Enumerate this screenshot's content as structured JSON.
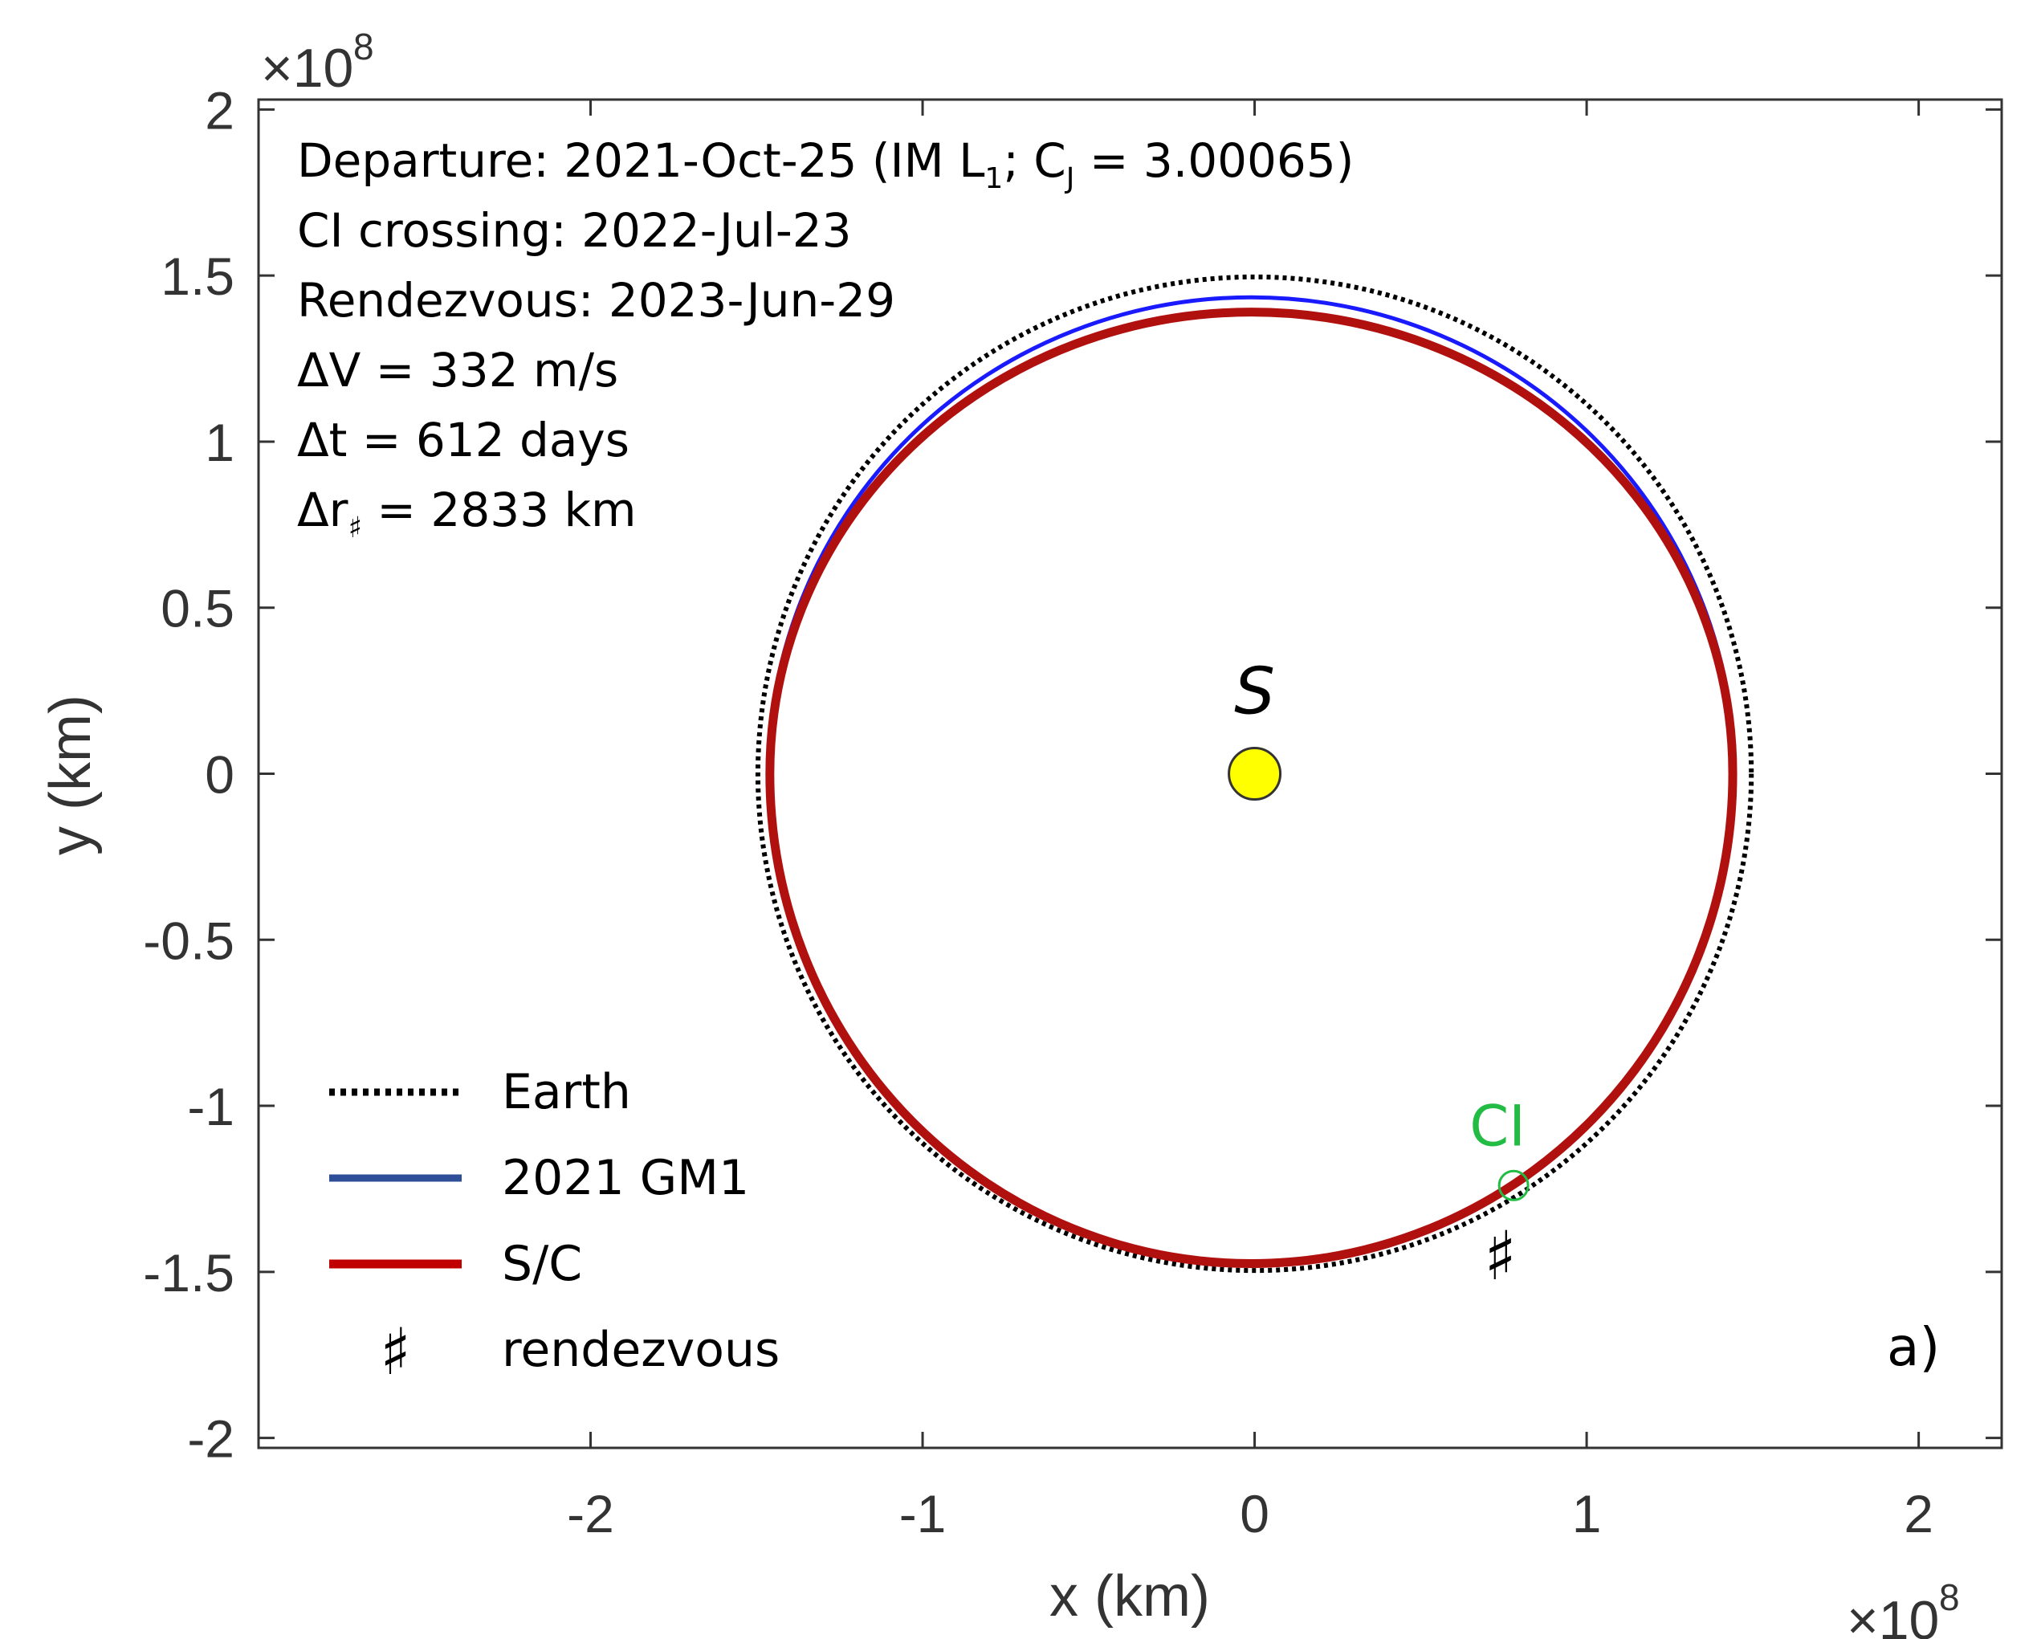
{
  "chart_data": {
    "type": "line",
    "title": "",
    "xlabel": "x (km)",
    "ylabel": "y (km)",
    "x_exponent_label": "×10",
    "x_exponent_power": "8",
    "y_exponent_label": "×10",
    "y_exponent_power": "8",
    "xlim": [
      -3.0,
      2.25
    ],
    "ylim": [
      -2.03,
      2.03
    ],
    "x_ticks": [
      -2,
      -1,
      0,
      1,
      2
    ],
    "x_tick_labels": [
      "-2",
      "-1",
      "0",
      "1",
      "2"
    ],
    "y_ticks": [
      -2,
      -1.5,
      -1,
      -0.5,
      0,
      0.5,
      1,
      1.5,
      2
    ],
    "y_tick_labels": [
      "-2",
      "-1.5",
      "-1",
      "-0.5",
      "0",
      "0.5",
      "1",
      "1.5",
      "2"
    ],
    "units_note": "x and y values in units of 10^8 km",
    "grid": false,
    "legend_position": "bottom-left",
    "colors": {
      "earth": "#000000",
      "gm1": "#1a1aff",
      "sc": "#b0110f",
      "sun": "#ffff00",
      "ci": "#22bb44",
      "legend_gm1": "#2e4f97",
      "legend_sc": "#c00000"
    },
    "series": [
      {
        "name": "Earth",
        "style": "dotted",
        "center": [
          0.0,
          0.0
        ],
        "radius": 1.496
      },
      {
        "name": "2021 GM1",
        "style": "solid",
        "center": [
          -0.01,
          0.0
        ],
        "radius_x": 1.455,
        "radius_y_top": 1.435,
        "radius_y_bottom": 1.48
      },
      {
        "name": "S/C",
        "style": "solid-thick",
        "center": [
          -0.01,
          0.0
        ],
        "radius_x": 1.45,
        "radius_y_top": 1.39,
        "radius_y_bottom": 1.475
      }
    ],
    "points": {
      "sun": {
        "label": "S",
        "x": 0.0,
        "y": 0.0
      },
      "ci_crossing": {
        "label": "CI",
        "x": 0.78,
        "y": -1.24
      },
      "rendezvous": {
        "symbol": "♯",
        "x": 0.74,
        "y": -1.45
      }
    },
    "legend": [
      {
        "label": "Earth",
        "key": "earth"
      },
      {
        "label": "2021 GM1",
        "key": "gm1"
      },
      {
        "label": "S/C",
        "key": "sc"
      },
      {
        "label": "rendezvous",
        "key": "rendezvous",
        "symbol": "♯"
      }
    ],
    "annotations": [
      {
        "prefix": "Departure:  2021-Oct-25  (IM L",
        "sub1": "1",
        "mid": "; C",
        "sub2": "J",
        "suffix": " = 3.00065)"
      },
      {
        "text": "CI crossing: 2022-Jul-23"
      },
      {
        "text": "Rendezvous: 2023-Jun-29"
      },
      {
        "text": "ΔV = 332 m/s"
      },
      {
        "text": "Δt = 612 days"
      },
      {
        "prefix": "Δr",
        "sub1": "♯",
        "suffix": " = 2833 km"
      }
    ],
    "panel_label": "a)"
  }
}
